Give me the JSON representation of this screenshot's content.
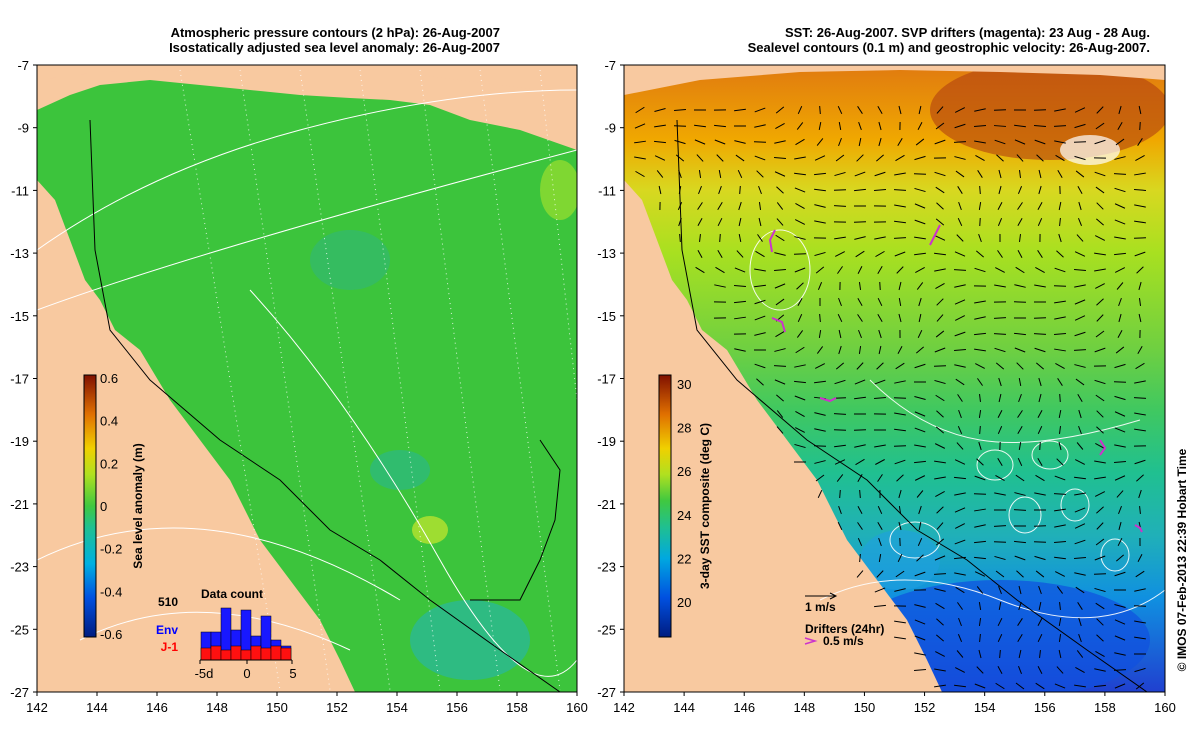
{
  "left_panel": {
    "title_line1": "Atmospheric pressure contours (2 hPa): 26-Aug-2007",
    "title_line2": "Isostatically adjusted sea level anomaly: 26-Aug-2007",
    "colorbar_label": "Sea level anomaly (m)",
    "colorbar_ticks": [
      "0.6",
      "0.4",
      "0.2",
      "0",
      "-0.2",
      "-0.4",
      "-0.6"
    ],
    "data_count": {
      "title": "Data count",
      "max_label": "510",
      "env_label": "Env",
      "j1_label": "J-1",
      "x_ticks": [
        "-5d",
        "0",
        "5"
      ],
      "env_values": [
        28,
        28,
        52,
        30,
        50,
        24,
        44,
        20,
        14
      ],
      "j1_values": [
        12,
        14,
        10,
        14,
        10,
        14,
        12,
        14,
        12
      ]
    }
  },
  "right_panel": {
    "title_line1": "SST: 26-Aug-2007. SVP drifters (magenta): 23 Aug - 28 Aug.",
    "title_line2": "Sealevel contours (0.1 m) and geostrophic velocity: 26-Aug-2007.",
    "colorbar_label": "3-day SST composite (deg C)",
    "colorbar_ticks": [
      "30",
      "28",
      "26",
      "24",
      "22",
      "20"
    ],
    "velocity_scale_label": "1 m/s",
    "drifter_label": "Drifters (24hr)",
    "drifter_scale_label": "0.5 m/s"
  },
  "axes": {
    "lat_ticks": [
      "-7",
      "-9",
      "-11",
      "-13",
      "-15",
      "-17",
      "-19",
      "-21",
      "-23",
      "-25",
      "-27"
    ],
    "lon_ticks": [
      "142",
      "144",
      "146",
      "148",
      "150",
      "152",
      "154",
      "156",
      "158",
      "160"
    ],
    "lat_range": [
      -27,
      -7
    ],
    "lon_range": [
      142,
      160
    ]
  },
  "credit": "© IMOS 07-Feb-2013 22:39 Hobart Time",
  "colors": {
    "land": "#f8c9a0",
    "ocean_left": "#3cc43c",
    "drifter": "#cc33cc"
  }
}
